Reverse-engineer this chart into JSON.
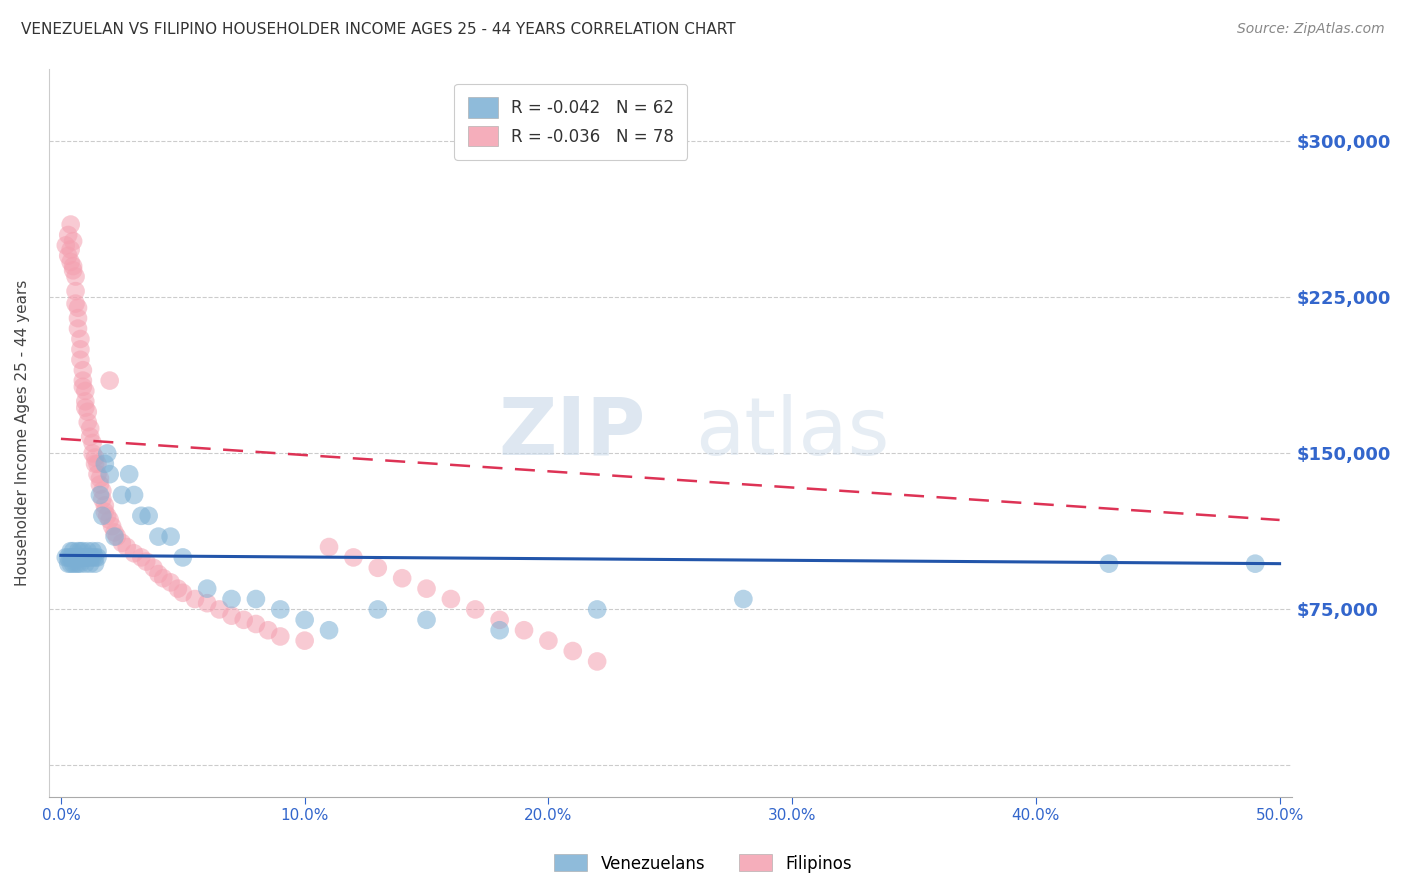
{
  "title": "VENEZUELAN VS FILIPINO HOUSEHOLDER INCOME AGES 25 - 44 YEARS CORRELATION CHART",
  "source": "Source: ZipAtlas.com",
  "ylabel": "Householder Income Ages 25 - 44 years",
  "xlim": [
    -0.005,
    0.505
  ],
  "ylim": [
    -15000,
    335000
  ],
  "yticks": [
    0,
    75000,
    150000,
    225000,
    300000
  ],
  "ytick_labels": [
    "",
    "$75,000",
    "$150,000",
    "$225,000",
    "$300,000"
  ],
  "xticks": [
    0.0,
    0.1,
    0.2,
    0.3,
    0.4,
    0.5
  ],
  "xtick_labels": [
    "0.0%",
    "10.0%",
    "20.0%",
    "30.0%",
    "40.0%",
    "50.0%"
  ],
  "legend_r_venezuelan": "R = -0.042",
  "legend_n_venezuelan": "N = 62",
  "legend_r_filipino": "R = -0.036",
  "legend_n_filipino": "N = 78",
  "color_venezuelan": "#7BAFD4",
  "color_filipino": "#F4A0B0",
  "color_trendline_venezuelan": "#2255AA",
  "color_trendline_filipino": "#DD3355",
  "color_axis_labels": "#3366CC",
  "watermark_zip": "ZIP",
  "watermark_atlas": "atlas",
  "trendline_ven_x0": 0.0,
  "trendline_ven_y0": 101000,
  "trendline_ven_x1": 0.5,
  "trendline_ven_y1": 97000,
  "trendline_fil_x0": 0.0,
  "trendline_fil_y0": 157000,
  "trendline_fil_x1": 0.5,
  "trendline_fil_y1": 118000,
  "venezuelan_x": [
    0.002,
    0.003,
    0.003,
    0.004,
    0.004,
    0.004,
    0.005,
    0.005,
    0.005,
    0.005,
    0.006,
    0.006,
    0.006,
    0.007,
    0.007,
    0.007,
    0.008,
    0.008,
    0.008,
    0.009,
    0.009,
    0.009,
    0.01,
    0.01,
    0.01,
    0.011,
    0.011,
    0.012,
    0.012,
    0.013,
    0.013,
    0.014,
    0.014,
    0.015,
    0.015,
    0.016,
    0.017,
    0.018,
    0.019,
    0.02,
    0.022,
    0.025,
    0.028,
    0.03,
    0.033,
    0.036,
    0.04,
    0.045,
    0.05,
    0.06,
    0.07,
    0.08,
    0.09,
    0.1,
    0.11,
    0.13,
    0.15,
    0.18,
    0.22,
    0.28,
    0.43,
    0.49
  ],
  "venezuelan_y": [
    100000,
    100000,
    97000,
    100000,
    103000,
    97000,
    100000,
    100000,
    103000,
    97000,
    100000,
    100000,
    97000,
    100000,
    103000,
    97000,
    100000,
    103000,
    97000,
    100000,
    100000,
    103000,
    100000,
    100000,
    97000,
    100000,
    103000,
    100000,
    97000,
    100000,
    103000,
    100000,
    97000,
    100000,
    103000,
    130000,
    120000,
    145000,
    150000,
    140000,
    110000,
    130000,
    140000,
    130000,
    120000,
    120000,
    110000,
    110000,
    100000,
    85000,
    80000,
    80000,
    75000,
    70000,
    65000,
    75000,
    70000,
    65000,
    75000,
    80000,
    97000,
    97000
  ],
  "filipino_x": [
    0.002,
    0.003,
    0.003,
    0.004,
    0.004,
    0.004,
    0.005,
    0.005,
    0.005,
    0.006,
    0.006,
    0.006,
    0.007,
    0.007,
    0.007,
    0.008,
    0.008,
    0.008,
    0.009,
    0.009,
    0.009,
    0.01,
    0.01,
    0.01,
    0.011,
    0.011,
    0.012,
    0.012,
    0.013,
    0.013,
    0.014,
    0.014,
    0.015,
    0.015,
    0.016,
    0.016,
    0.017,
    0.017,
    0.018,
    0.018,
    0.019,
    0.02,
    0.021,
    0.022,
    0.023,
    0.025,
    0.027,
    0.03,
    0.033,
    0.035,
    0.038,
    0.04,
    0.042,
    0.045,
    0.048,
    0.05,
    0.055,
    0.06,
    0.065,
    0.07,
    0.075,
    0.08,
    0.085,
    0.09,
    0.1,
    0.11,
    0.12,
    0.13,
    0.14,
    0.15,
    0.16,
    0.17,
    0.18,
    0.19,
    0.2,
    0.21,
    0.22,
    0.02
  ],
  "filipino_y": [
    250000,
    255000,
    245000,
    260000,
    248000,
    242000,
    240000,
    252000,
    238000,
    235000,
    228000,
    222000,
    220000,
    215000,
    210000,
    205000,
    200000,
    195000,
    190000,
    185000,
    182000,
    180000,
    175000,
    172000,
    170000,
    165000,
    162000,
    158000,
    155000,
    150000,
    148000,
    145000,
    145000,
    140000,
    138000,
    135000,
    132000,
    128000,
    125000,
    122000,
    120000,
    118000,
    115000,
    112000,
    110000,
    107000,
    105000,
    102000,
    100000,
    98000,
    95000,
    92000,
    90000,
    88000,
    85000,
    83000,
    80000,
    78000,
    75000,
    72000,
    70000,
    68000,
    65000,
    62000,
    60000,
    105000,
    100000,
    95000,
    90000,
    85000,
    80000,
    75000,
    70000,
    65000,
    60000,
    55000,
    50000,
    185000
  ]
}
